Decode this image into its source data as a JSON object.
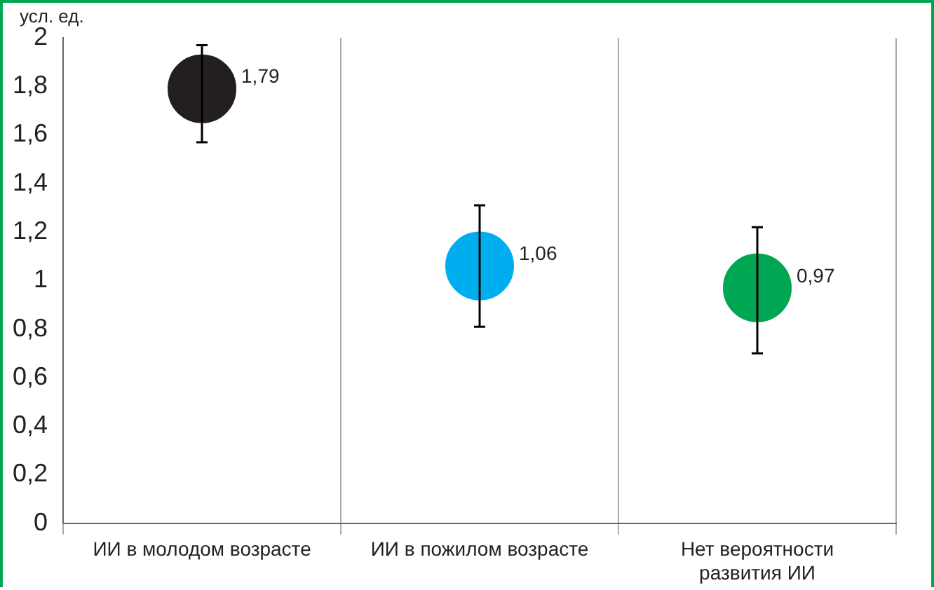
{
  "chart_data": {
    "type": "scatter",
    "ylabel": "усл. ед.",
    "categories": [
      "ИИ в молодом возрасте",
      "ИИ в пожилом возрасте",
      "Нет вероятности развития ИИ"
    ],
    "values": [
      1.79,
      1.06,
      0.97
    ],
    "colors": [
      "#231f20",
      "#00aeef",
      "#00a651"
    ],
    "errors": [
      [
        1.57,
        1.97
      ],
      [
        0.81,
        1.31
      ],
      [
        0.7,
        1.22
      ]
    ],
    "value_labels": [
      "1,79",
      "1,06",
      "0,97"
    ],
    "ylim": [
      0,
      2
    ],
    "yticks": [
      0,
      {
        "value": 0.2,
        "label": "0,2"
      },
      {
        "value": 0.4,
        "label": "0,4"
      },
      {
        "value": 0.6,
        "label": "0,6"
      },
      {
        "value": 0.8,
        "label": "0,8"
      },
      1,
      {
        "value": 1.2,
        "label": "1,2"
      },
      {
        "value": 1.4,
        "label": "1,4"
      },
      {
        "value": 1.6,
        "label": "1,6"
      },
      {
        "value": 1.8,
        "label": "1,8"
      },
      2
    ],
    "grid": "x",
    "marker": "circle",
    "legend": false
  }
}
